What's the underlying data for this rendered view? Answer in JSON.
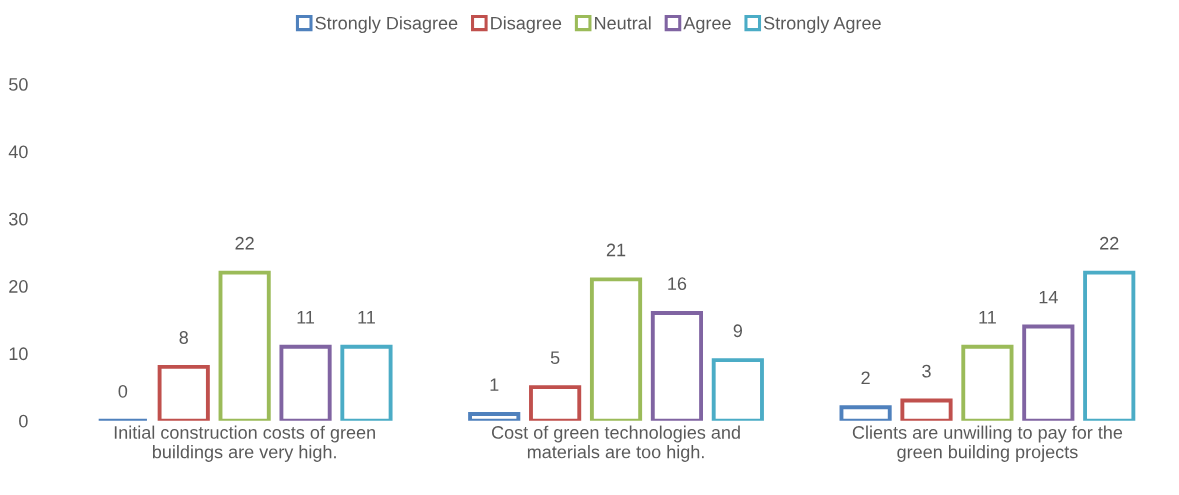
{
  "chart_data": {
    "type": "bar",
    "categories": [
      "Initial construction costs of green\nbuildings are very high.",
      "Cost of green technologies and\nmaterials are too high.",
      "Clients are unwilling to pay for the\ngreen building projects"
    ],
    "series": [
      {
        "name": "Strongly Disagree",
        "color": "#4f81bd",
        "values": [
          0,
          1,
          2
        ]
      },
      {
        "name": "Disagree",
        "color": "#c0504d",
        "values": [
          8,
          5,
          3
        ]
      },
      {
        "name": "Neutral",
        "color": "#9bbb59",
        "values": [
          22,
          21,
          11
        ]
      },
      {
        "name": "Agree",
        "color": "#8064a2",
        "values": [
          11,
          16,
          14
        ]
      },
      {
        "name": "Strongly Agree",
        "color": "#4bacc6",
        "values": [
          11,
          9,
          22
        ]
      }
    ],
    "ylim": [
      0,
      50
    ],
    "yticks": [
      0,
      10,
      20,
      30,
      40,
      50
    ],
    "data_labels": true,
    "grid": false,
    "legend": "top"
  }
}
